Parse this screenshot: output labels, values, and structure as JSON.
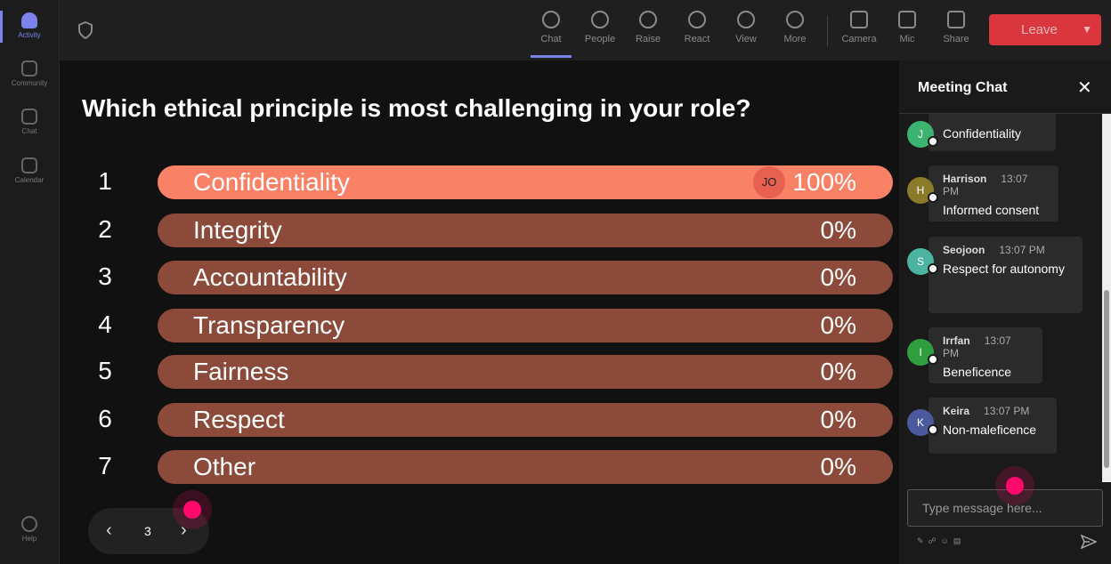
{
  "sidebar": {
    "items": [
      "Activity",
      "Community",
      "Chat",
      "Calendar"
    ],
    "help": "Help"
  },
  "toolbar": {
    "items": [
      "Chat",
      "People",
      "Raise",
      "React",
      "View",
      "More",
      "Camera",
      "Mic",
      "Share"
    ],
    "leave": "Leave"
  },
  "poll": {
    "question": "Which ethical principle is most challenging in your role?",
    "options": [
      {
        "number": "1",
        "label": "Confidentiality",
        "percent": "100%",
        "voter": "JO"
      },
      {
        "number": "2",
        "label": "Integrity",
        "percent": "0%"
      },
      {
        "number": "3",
        "label": "Accountability",
        "percent": "0%"
      },
      {
        "number": "4",
        "label": "Transparency",
        "percent": "0%"
      },
      {
        "number": "5",
        "label": "Fairness",
        "percent": "0%"
      },
      {
        "number": "6",
        "label": "Respect",
        "percent": "0%"
      },
      {
        "number": "7",
        "label": "Other",
        "percent": "0%"
      }
    ],
    "page": "3"
  },
  "chat": {
    "title": "Meeting Chat",
    "messages": [
      {
        "initial": "J",
        "text": "Confidentiality"
      },
      {
        "initial": "H",
        "name": "Harrison",
        "time": "13:07 PM",
        "text": "Informed consent"
      },
      {
        "initial": "S",
        "name": "Seojoon",
        "time": "13:07 PM",
        "text": "Respect for autonomy"
      },
      {
        "initial": "I",
        "name": "Irrfan",
        "time": "13:07 PM",
        "text": "Beneficence"
      },
      {
        "initial": "K",
        "name": "Keira",
        "time": "13:07 PM",
        "text": "Non-maleficence"
      }
    ],
    "placeholder": "Type message here..."
  }
}
